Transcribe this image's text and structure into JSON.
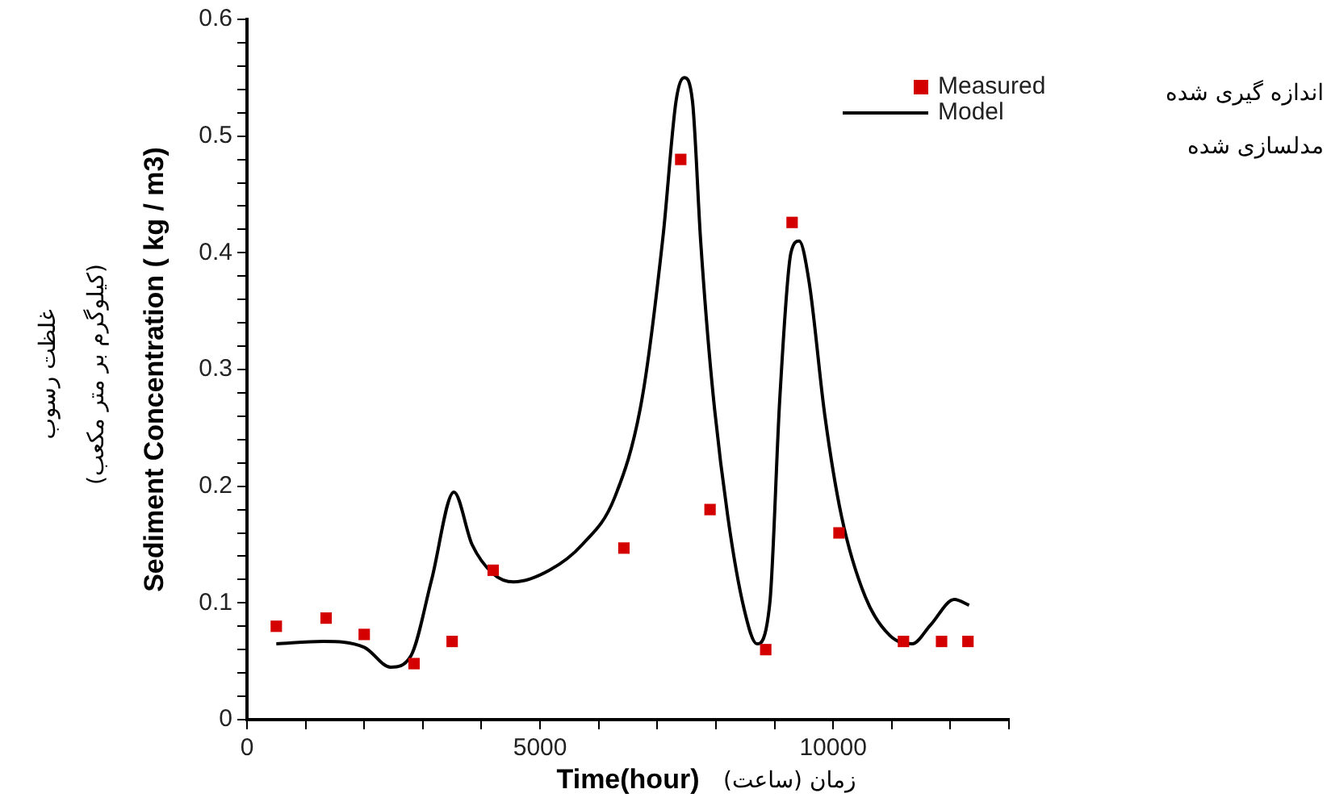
{
  "chart_data": {
    "type": "scatter",
    "xlabel": "Time(hour)",
    "ylabel": "Sediment Concentration ( kg / m3)",
    "annotations": [
      "زمان (ساعت)",
      "غلظت رسوب",
      "(کیلوگرم بر متر مکعب)",
      "اندازه گیری شده",
      "مدلسازی شده"
    ],
    "xlim": [
      0,
      13000
    ],
    "ylim": [
      0,
      0.6
    ],
    "xticks": [
      0,
      {
        "value": 1000,
        "label": null
      },
      {
        "value": 2000,
        "label": null
      },
      {
        "value": 3000,
        "label": null
      },
      {
        "value": 4000,
        "label": null
      },
      5000,
      {
        "value": 6000,
        "label": null
      },
      {
        "value": 7000,
        "label": null
      },
      {
        "value": 8000,
        "label": null
      },
      {
        "value": 9000,
        "label": null
      },
      10000,
      {
        "value": 11000,
        "label": null
      },
      {
        "value": 12000,
        "label": null
      },
      {
        "value": 13000,
        "label": null
      }
    ],
    "yticks": [
      0,
      {
        "value": 0.02,
        "label": null
      },
      {
        "value": 0.04,
        "label": null
      },
      {
        "value": 0.06,
        "label": null
      },
      {
        "value": 0.08,
        "label": null
      },
      0.1,
      {
        "value": 0.12,
        "label": null
      },
      {
        "value": 0.14,
        "label": null
      },
      {
        "value": 0.16,
        "label": null
      },
      {
        "value": 0.18,
        "label": null
      },
      0.2,
      {
        "value": 0.22,
        "label": null
      },
      {
        "value": 0.24,
        "label": null
      },
      {
        "value": 0.26,
        "label": null
      },
      {
        "value": 0.28,
        "label": null
      },
      0.3,
      {
        "value": 0.32,
        "label": null
      },
      {
        "value": 0.34,
        "label": null
      },
      {
        "value": 0.36,
        "label": null
      },
      {
        "value": 0.38,
        "label": null
      },
      0.4,
      {
        "value": 0.42,
        "label": null
      },
      {
        "value": 0.44,
        "label": null
      },
      {
        "value": 0.46,
        "label": null
      },
      {
        "value": 0.48,
        "label": null
      },
      0.5,
      {
        "value": 0.52,
        "label": null
      },
      {
        "value": 0.54,
        "label": null
      },
      {
        "value": 0.56,
        "label": null
      },
      {
        "value": 0.58,
        "label": null
      },
      0.6
    ],
    "grid": false,
    "legend": "top right",
    "series": [
      {
        "name": "Measured",
        "type": "scatter",
        "marker": "square",
        "color": "#d40000",
        "x": [
          500,
          1350,
          2000,
          2850,
          3500,
          4200,
          6430,
          7400,
          7900,
          8850,
          9300,
          10100,
          11200,
          11850,
          12300
        ],
        "values": [
          0.08,
          0.087,
          0.073,
          0.048,
          0.067,
          0.128,
          0.147,
          0.48,
          0.18,
          0.06,
          0.426,
          0.16,
          0.067,
          0.067,
          0.067
        ]
      },
      {
        "name": "Model",
        "type": "line",
        "marker": "none",
        "line_style": "solid",
        "color": "#000000",
        "x": [
          500,
          1300,
          2000,
          2450,
          2800,
          3150,
          3530,
          3840,
          4200,
          4550,
          5160,
          5720,
          6270,
          6740,
          7100,
          7320,
          7460,
          7600,
          7740,
          7930,
          8200,
          8480,
          8700,
          8920,
          9090,
          9280,
          9420,
          9590,
          9860,
          10140,
          10550,
          10970,
          11350,
          11660,
          12070,
          12320
        ],
        "values": [
          0.065,
          0.067,
          0.062,
          0.045,
          0.055,
          0.12,
          0.195,
          0.15,
          0.125,
          0.118,
          0.128,
          0.15,
          0.19,
          0.275,
          0.415,
          0.53,
          0.55,
          0.53,
          0.41,
          0.29,
          0.175,
          0.095,
          0.065,
          0.1,
          0.275,
          0.4,
          0.41,
          0.375,
          0.26,
          0.175,
          0.105,
          0.072,
          0.065,
          0.081,
          0.103,
          0.098
        ]
      }
    ]
  }
}
